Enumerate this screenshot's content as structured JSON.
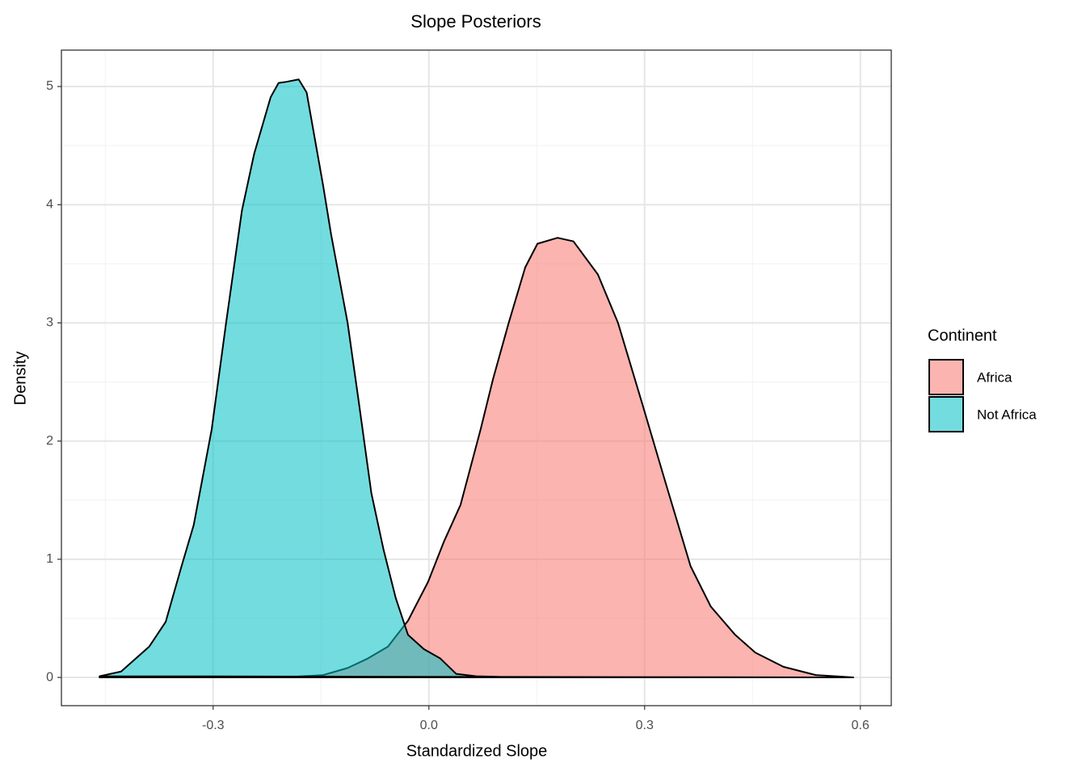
{
  "chart_data": {
    "type": "density",
    "title": "Slope Posteriors",
    "x_label": "Standardized Slope",
    "y_label": "Density",
    "legend_title": "Continent",
    "legend_position": "right",
    "grid": true,
    "xlim": [
      -0.511,
      0.643
    ],
    "ylim": [
      -0.239,
      5.308
    ],
    "xticks": [
      -0.3,
      {
        "value": 0,
        "label": "0.0"
      },
      0.3,
      0.6
    ],
    "yticks": [
      0,
      1,
      2,
      3,
      4,
      5
    ],
    "x_minor_ticks": [
      -0.45,
      -0.15,
      0.15,
      0.45
    ],
    "y_minor_ticks": [
      0.5,
      1.5,
      2.5,
      3.5,
      4.5
    ],
    "series": [
      {
        "name": "Africa",
        "color": "#F8766D",
        "x": [
          -0.458,
          -0.203,
          -0.147,
          -0.113,
          -0.085,
          -0.057,
          -0.029,
          -0.001,
          0.021,
          0.044,
          0.072,
          0.089,
          0.111,
          0.134,
          0.151,
          0.179,
          0.201,
          0.235,
          0.263,
          0.297,
          0.33,
          0.364,
          0.392,
          0.426,
          0.454,
          0.493,
          0.538,
          0.59
        ],
        "values": [
          0,
          0,
          0.02,
          0.08,
          0.16,
          0.26,
          0.48,
          0.81,
          1.15,
          1.46,
          2.1,
          2.52,
          3.0,
          3.47,
          3.67,
          3.72,
          3.69,
          3.41,
          3.0,
          2.31,
          1.63,
          0.94,
          0.6,
          0.36,
          0.21,
          0.09,
          0.02,
          0
        ]
      },
      {
        "name": "Not Africa",
        "color": "#00BFC4",
        "x": [
          -0.458,
          -0.428,
          -0.389,
          -0.366,
          -0.344,
          -0.327,
          -0.302,
          -0.282,
          -0.26,
          -0.243,
          -0.22,
          -0.209,
          -0.198,
          -0.181,
          -0.17,
          -0.147,
          -0.136,
          -0.113,
          -0.097,
          -0.08,
          -0.063,
          -0.046,
          -0.029,
          -0.007,
          0.016,
          0.038,
          0.066,
          0.134,
          0.59
        ],
        "values": [
          0.01,
          0.05,
          0.26,
          0.47,
          0.94,
          1.29,
          2.1,
          3.0,
          3.95,
          4.43,
          4.91,
          5.03,
          5.04,
          5.06,
          4.95,
          4.16,
          3.75,
          3.0,
          2.31,
          1.56,
          1.08,
          0.67,
          0.36,
          0.24,
          0.16,
          0.03,
          0.01,
          0,
          0
        ]
      }
    ]
  }
}
